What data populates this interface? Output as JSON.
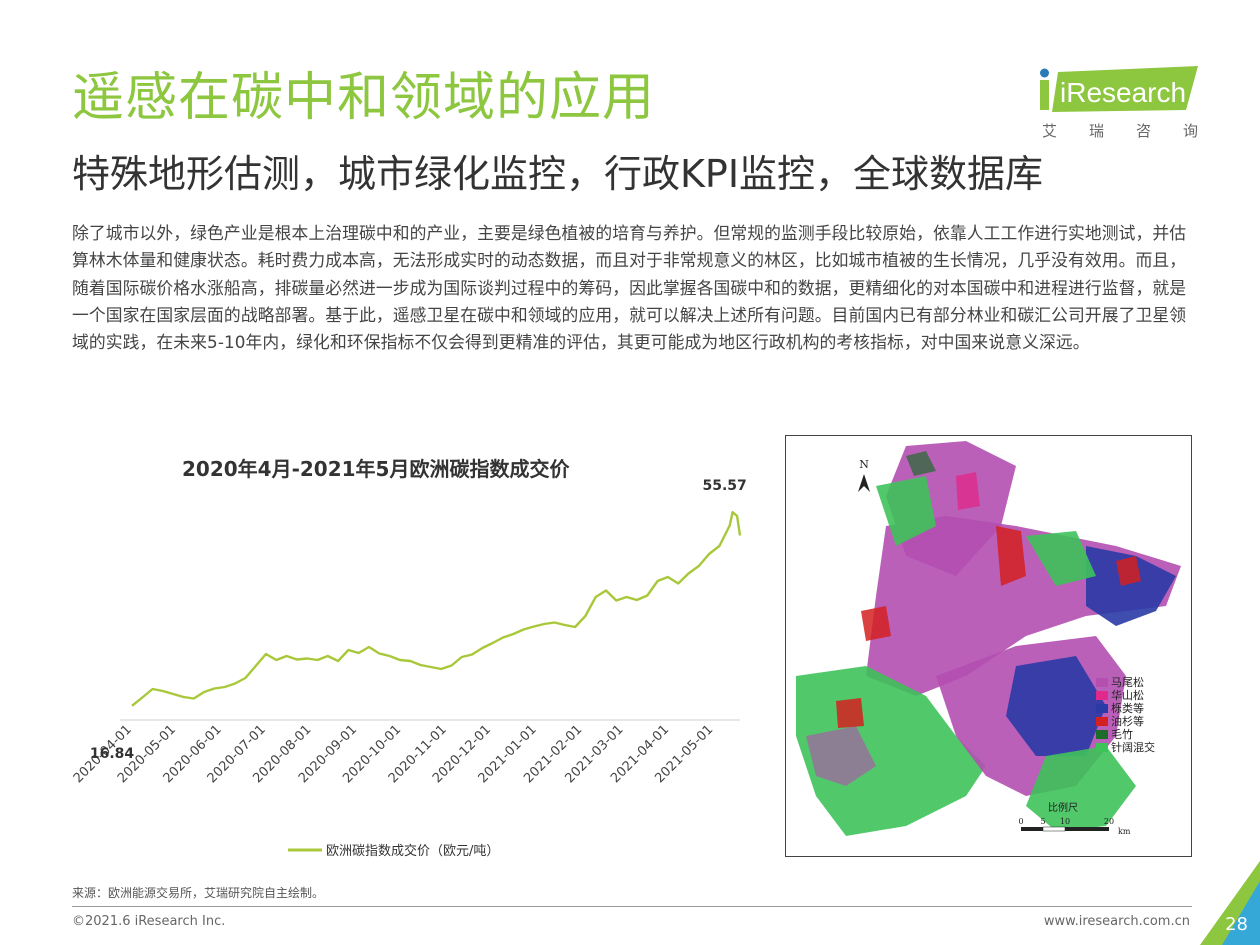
{
  "header": {
    "title": "遥感在碳中和领域的应用",
    "subtitle": "特殊地形估测，城市绿化监控，行政KPI监控，全球数据库"
  },
  "logo": {
    "name": "iResearch",
    "cn_chars": [
      "艾",
      "瑞",
      "咨",
      "询"
    ],
    "accent": "#8dc63f"
  },
  "body_text": "除了城市以外，绿色产业是根本上治理碳中和的产业，主要是绿色植被的培育与养护。但常规的监测手段比较原始，依靠人工工作进行实地测试，并估算林木体量和健康状态。耗时费力成本高，无法形成实时的动态数据，而且对于非常规意义的林区，比如城市植被的生长情况，几乎没有效用。而且，随着国际碳价格水涨船高，排碳量必然进一步成为国际谈判过程中的筹码，因此掌握各国碳中和的数据，更精细化的对本国碳中和进程进行监督，就是一个国家在国家层面的战略部署。基于此，遥感卫星在碳中和领域的应用，就可以解决上述所有问题。目前国内已有部分林业和碳汇公司开展了卫星领域的实践，在未来5-10年内，绿化和环保指标不仅会得到更精准的评估，其更可能成为地区行政机构的考核指标，对中国来说意义深远。",
  "chart_data": {
    "type": "line",
    "title": "2020年4月-2021年5月欧洲碳指数成交价",
    "x_ticks": [
      "2020-04-01",
      "2020-05-01",
      "2020-06-01",
      "2020-07-01",
      "2020-08-01",
      "2020-09-01",
      "2020-10-01",
      "2020-11-01",
      "2020-12-01",
      "2021-01-01",
      "2021-02-01",
      "2021-03-01",
      "2021-04-01",
      "2021-05-01"
    ],
    "series": [
      {
        "name": "欧洲碳指数成交价（欧元/吨）",
        "color": "#a8c83a",
        "x": [
          "2020-04-01",
          "2020-04-08",
          "2020-04-15",
          "2020-04-22",
          "2020-04-29",
          "2020-05-06",
          "2020-05-13",
          "2020-05-20",
          "2020-05-27",
          "2020-06-03",
          "2020-06-10",
          "2020-06-17",
          "2020-06-24",
          "2020-07-01",
          "2020-07-08",
          "2020-07-15",
          "2020-07-22",
          "2020-07-29",
          "2020-08-05",
          "2020-08-12",
          "2020-08-19",
          "2020-08-26",
          "2020-09-02",
          "2020-09-09",
          "2020-09-16",
          "2020-09-23",
          "2020-09-30",
          "2020-10-07",
          "2020-10-14",
          "2020-10-21",
          "2020-10-28",
          "2020-11-04",
          "2020-11-11",
          "2020-11-18",
          "2020-11-25",
          "2020-12-02",
          "2020-12-09",
          "2020-12-16",
          "2020-12-23",
          "2020-12-30",
          "2021-01-06",
          "2021-01-13",
          "2021-01-20",
          "2021-01-27",
          "2021-02-03",
          "2021-02-10",
          "2021-02-17",
          "2021-02-24",
          "2021-03-03",
          "2021-03-10",
          "2021-03-17",
          "2021-03-24",
          "2021-03-31",
          "2021-04-07",
          "2021-04-14",
          "2021-04-21",
          "2021-04-28",
          "2021-05-05",
          "2021-05-12",
          "2021-05-14",
          "2021-05-17",
          "2021-05-19"
        ],
        "values": [
          16.84,
          18.5,
          20.2,
          19.8,
          19.2,
          18.6,
          18.3,
          19.6,
          20.3,
          20.6,
          21.3,
          22.4,
          24.8,
          27.2,
          26.0,
          26.8,
          26.1,
          26.3,
          26.0,
          26.8,
          25.8,
          28.0,
          27.4,
          28.6,
          27.3,
          26.8,
          26.0,
          25.8,
          25.0,
          24.6,
          24.2,
          24.9,
          26.6,
          27.1,
          28.4,
          29.4,
          30.5,
          31.2,
          32.1,
          32.7,
          33.2,
          33.5,
          33.0,
          32.6,
          34.8,
          38.6,
          39.9,
          37.9,
          38.6,
          38.0,
          38.9,
          41.8,
          42.6,
          41.3,
          43.3,
          44.8,
          47.2,
          48.8,
          52.9,
          55.57,
          54.8,
          50.9
        ]
      }
    ],
    "data_labels": [
      {
        "x": "2020-04-01",
        "value": "16.84"
      },
      {
        "x": "2021-05-14",
        "value": "55.57"
      }
    ],
    "legend_label": "欧洲碳指数成交价（欧元/吨）",
    "ylim": [
      14,
      60
    ]
  },
  "map": {
    "legend": [
      {
        "label": "马尾松",
        "color": "#b44fb0"
      },
      {
        "label": "华山松",
        "color": "#e0298a"
      },
      {
        "label": "栎类等",
        "color": "#2a3aa6"
      },
      {
        "label": "油杉等",
        "color": "#d42020"
      },
      {
        "label": "毛竹",
        "color": "#1f6b2c"
      },
      {
        "label": "针阔混交",
        "color": "#3ec25a"
      }
    ],
    "north_label": "N",
    "scale_label": "比例尺",
    "scale_ticks": [
      "0",
      "5",
      "10",
      "20"
    ],
    "scale_unit": "km"
  },
  "footer": {
    "source": "来源：欧洲能源交易所，艾瑞研究院自主绘制。",
    "copyright": "©2021.6 iResearch Inc.",
    "website": "www.iresearch.com.cn",
    "page": "28"
  }
}
